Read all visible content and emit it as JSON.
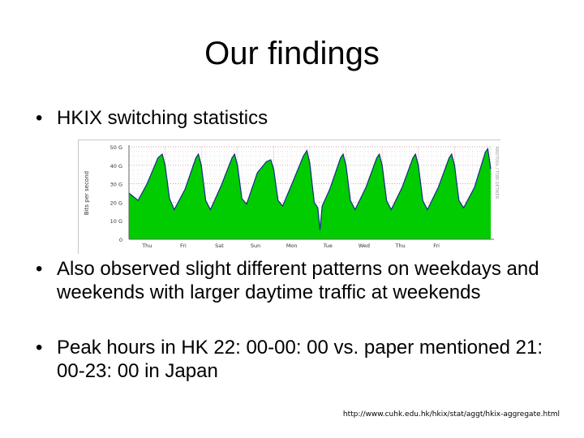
{
  "slide": {
    "title": "Our findings",
    "bullets": [
      "HKIX switching statistics",
      "Also observed slight different patterns on weekdays and weekends with larger daytime traffic at weekends",
      "Peak hours in HK 22: 00-00: 00 vs. paper mentioned 21: 00-23: 00 in Japan"
    ],
    "bullet_glyph": "•",
    "source_url": "http://www.cuhk.edu.hk/hkix/stat/aggt/hkix-aggregate.html"
  },
  "chart_data": {
    "type": "area",
    "ylabel": "Bits per second",
    "yticks": [
      "50 G",
      "40 G",
      "30 G",
      "20 G",
      "10 G",
      "0"
    ],
    "ylim": [
      0,
      50
    ],
    "xlim": [
      0,
      10
    ],
    "xticks": [
      "Thu",
      "Fri",
      "Sat",
      "Sun",
      "Mon",
      "Tue",
      "Wed",
      "Thu",
      "Fri"
    ],
    "xtick_positions": [
      0.5,
      1.5,
      2.5,
      3.5,
      4.5,
      5.5,
      6.5,
      7.5,
      8.5
    ],
    "side_label": "RRDTOOL / TOBI OETIKER",
    "grid": true,
    "colors": {
      "fill": "#00cc00",
      "line": "#1a2a8a",
      "grid": "#d08080",
      "axis": "#666666"
    },
    "series": [
      {
        "values": [
          [
            0.0,
            25
          ],
          [
            0.25,
            21
          ],
          [
            0.5,
            30
          ],
          [
            0.8,
            44
          ],
          [
            0.92,
            46
          ],
          [
            1.0,
            40
          ],
          [
            1.12,
            22
          ],
          [
            1.25,
            16
          ],
          [
            1.55,
            27
          ],
          [
            1.85,
            44
          ],
          [
            1.92,
            46
          ],
          [
            2.0,
            40
          ],
          [
            2.12,
            21
          ],
          [
            2.25,
            16
          ],
          [
            2.55,
            29
          ],
          [
            2.85,
            44
          ],
          [
            2.92,
            46
          ],
          [
            3.0,
            40
          ],
          [
            3.12,
            22
          ],
          [
            3.25,
            19
          ],
          [
            3.55,
            36
          ],
          [
            3.8,
            42
          ],
          [
            3.92,
            43
          ],
          [
            4.0,
            38
          ],
          [
            4.12,
            21
          ],
          [
            4.25,
            18
          ],
          [
            4.55,
            32
          ],
          [
            4.82,
            45
          ],
          [
            4.92,
            48
          ],
          [
            5.0,
            41
          ],
          [
            5.12,
            20
          ],
          [
            5.22,
            17
          ],
          [
            5.28,
            5
          ],
          [
            5.34,
            18
          ],
          [
            5.55,
            27
          ],
          [
            5.85,
            44
          ],
          [
            5.92,
            46
          ],
          [
            6.0,
            40
          ],
          [
            6.12,
            21
          ],
          [
            6.25,
            16
          ],
          [
            6.55,
            28
          ],
          [
            6.85,
            44
          ],
          [
            6.92,
            46
          ],
          [
            7.0,
            40
          ],
          [
            7.12,
            21
          ],
          [
            7.25,
            16
          ],
          [
            7.55,
            28
          ],
          [
            7.85,
            44
          ],
          [
            7.92,
            46
          ],
          [
            8.0,
            40
          ],
          [
            8.12,
            21
          ],
          [
            8.25,
            16
          ],
          [
            8.55,
            28
          ],
          [
            8.85,
            44
          ],
          [
            8.92,
            46
          ],
          [
            9.0,
            40
          ],
          [
            9.12,
            21
          ],
          [
            9.25,
            17
          ],
          [
            9.55,
            28
          ],
          [
            9.85,
            47
          ],
          [
            9.92,
            49
          ],
          [
            10.0,
            38
          ]
        ]
      }
    ]
  }
}
